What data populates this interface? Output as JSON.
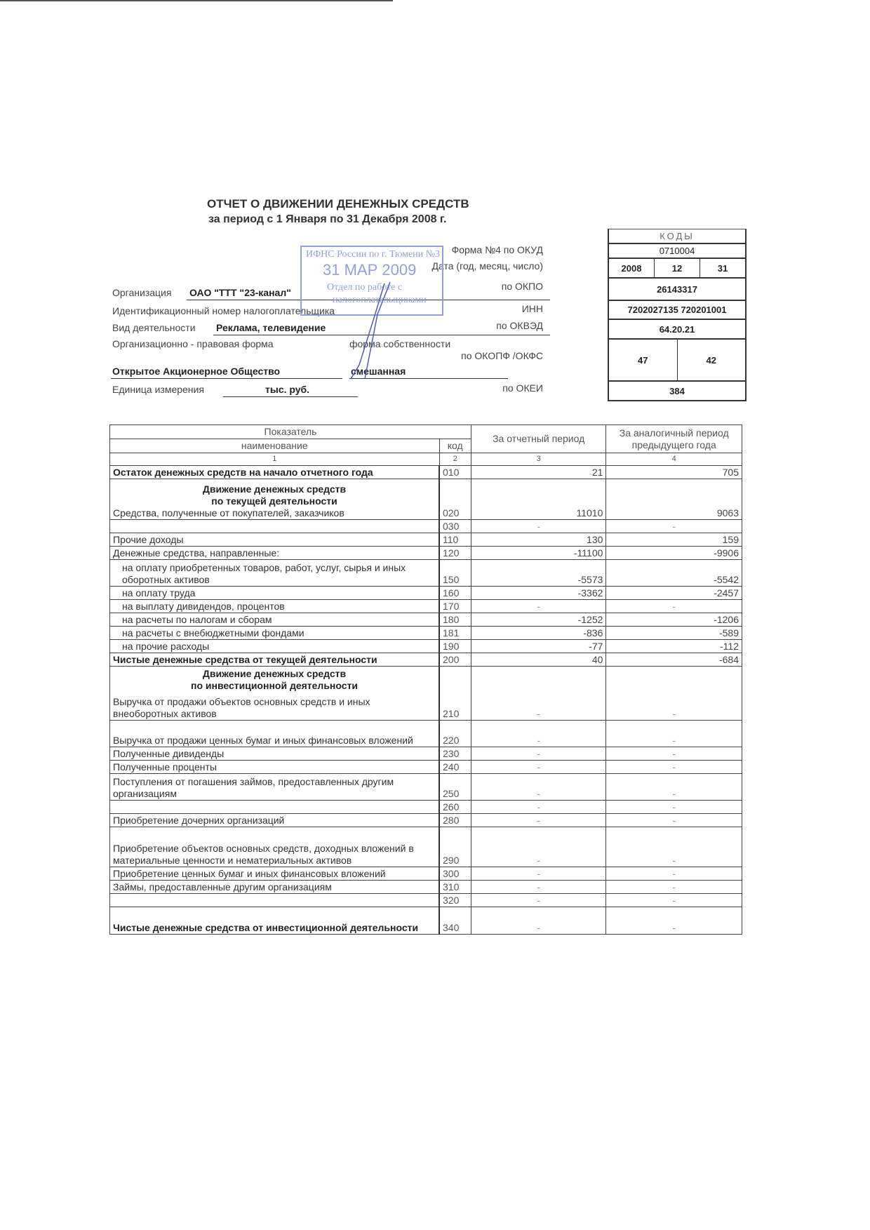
{
  "header": {
    "title": "ОТЧЕТ О ДВИЖЕНИИ ДЕНЕЖНЫХ СРЕДСТВ",
    "subtitle": "за  период с 1 Января по 31 Декабря 2008 г."
  },
  "fields": {
    "org_label": "Организация",
    "org_value": "ОАО \"ТТТ \"23-канал\"",
    "inn_label": "Идентификационный номер налогоплательщика",
    "activity_label": "Вид деятельности",
    "activity_value": "Реклама, телевидение",
    "legal_form_label": "Организационно - правовая форма",
    "ownership_label": "форма собственности",
    "legal_form_value": "Открытое Акционерное Общество",
    "ownership_value": "смешанная",
    "unit_label": "Единица измерения",
    "unit_value": "тыс. руб."
  },
  "codes": {
    "header": "КОДЫ",
    "okud_label": "Форма №4 по ОКУД",
    "okud": "0710004",
    "date_label": "Дата (год, месяц, число)",
    "date_year": "2008",
    "date_month": "12",
    "date_day": "31",
    "okpo_label": "по ОКПО",
    "okpo": "26143317",
    "inn_label": "ИНН",
    "inn": "7202027135 720201001",
    "okved_label": "по ОКВЭД",
    "okved": "64.20.21",
    "okopf_label": "по ОКОПФ /ОКФС",
    "okopf": "47",
    "okfs": "42",
    "okei_label": "по ОКЕИ",
    "okei": "384"
  },
  "stamp": {
    "line1": "ИФНС России по г. Тюмени №3",
    "date": "31 МАР 2009",
    "line3": "Отдел по работе с",
    "line4": "налогоплательщиками"
  },
  "table": {
    "h_indicator": "Показатель",
    "h_name": "наименование",
    "h_code": "код",
    "h_current": "За отчетный период",
    "h_previous": "За аналогичный период предыдущего года",
    "idx": [
      "1",
      "2",
      "3",
      "4"
    ],
    "sec_current": "Движение денежных средств по текущей деятельности",
    "sec_current_1": "Движение денежных средств",
    "sec_current_2": "по текущей деятельности",
    "sec_invest_1": "Движение денежных средств",
    "sec_invest_2": "по инвестиционной деятельности",
    "rows": [
      {
        "name": "Остаток денежных средств на начало отчетного года",
        "code": "010",
        "cur": "21",
        "prev": "705"
      },
      {
        "name": "Средства, полученные от покупателей, заказчиков",
        "code": "020",
        "cur": "11010",
        "prev": "9063"
      },
      {
        "name": "",
        "code": "030",
        "cur": "-",
        "prev": "-"
      },
      {
        "name": "Прочие доходы",
        "code": "110",
        "cur": "130",
        "prev": "159"
      },
      {
        "name": "Денежные средства, направленные:",
        "code": "120",
        "cur": "-11100",
        "prev": "-9906"
      },
      {
        "name": "на оплату приобретенных товаров, работ, услуг, сырья и иных оборотных активов",
        "code": "150",
        "cur": "-5573",
        "prev": "-5542"
      },
      {
        "name": "на оплату труда",
        "code": "160",
        "cur": "-3362",
        "prev": "-2457"
      },
      {
        "name": "на выплату дивидендов, процентов",
        "code": "170",
        "cur": "-",
        "prev": "-"
      },
      {
        "name": "на расчеты по налогам и сборам",
        "code": "180",
        "cur": "-1252",
        "prev": "-1206"
      },
      {
        "name": "на расчеты с внебюджетными фондами",
        "code": "181",
        "cur": "-836",
        "prev": "-589"
      },
      {
        "name": "на прочие расходы",
        "code": "190",
        "cur": "-77",
        "prev": "-112"
      },
      {
        "name": "Чистые денежные средства от текущей деятельности",
        "code": "200",
        "cur": "40",
        "prev": "-684"
      },
      {
        "name": "Выручка от продажи объектов основных средств и иных внеоборотных активов",
        "code": "210",
        "cur": "-",
        "prev": "-"
      },
      {
        "name": "Выручка от продажи ценных бумаг и иных финансовых вложений",
        "code": "220",
        "cur": "-",
        "prev": "-"
      },
      {
        "name": "Полученные дивиденды",
        "code": "230",
        "cur": "-",
        "prev": "-"
      },
      {
        "name": "Полученные проценты",
        "code": "240",
        "cur": "-",
        "prev": "-"
      },
      {
        "name": "Поступления от погашения займов, предоставленных другим организациям",
        "code": "250",
        "cur": "-",
        "prev": "-"
      },
      {
        "name": "",
        "code": "260",
        "cur": "-",
        "prev": "-"
      },
      {
        "name": "Приобретение дочерних организаций",
        "code": "280",
        "cur": "-",
        "prev": "-"
      },
      {
        "name": "Приобретение объектов основных средств, доходных вложений в материальные ценности и нематериальных активов",
        "code": "290",
        "cur": "-",
        "prev": "-"
      },
      {
        "name": "Приобретение ценных бумаг и иных финансовых вложений",
        "code": "300",
        "cur": "-",
        "prev": "-"
      },
      {
        "name": "Займы, предоставленные другим организациям",
        "code": "310",
        "cur": "-",
        "prev": "-"
      },
      {
        "name": "",
        "code": "320",
        "cur": "-",
        "prev": "-"
      },
      {
        "name": "Чистые денежные средства от инвестиционной деятельности",
        "code": "340",
        "cur": "-",
        "prev": "-"
      }
    ]
  }
}
